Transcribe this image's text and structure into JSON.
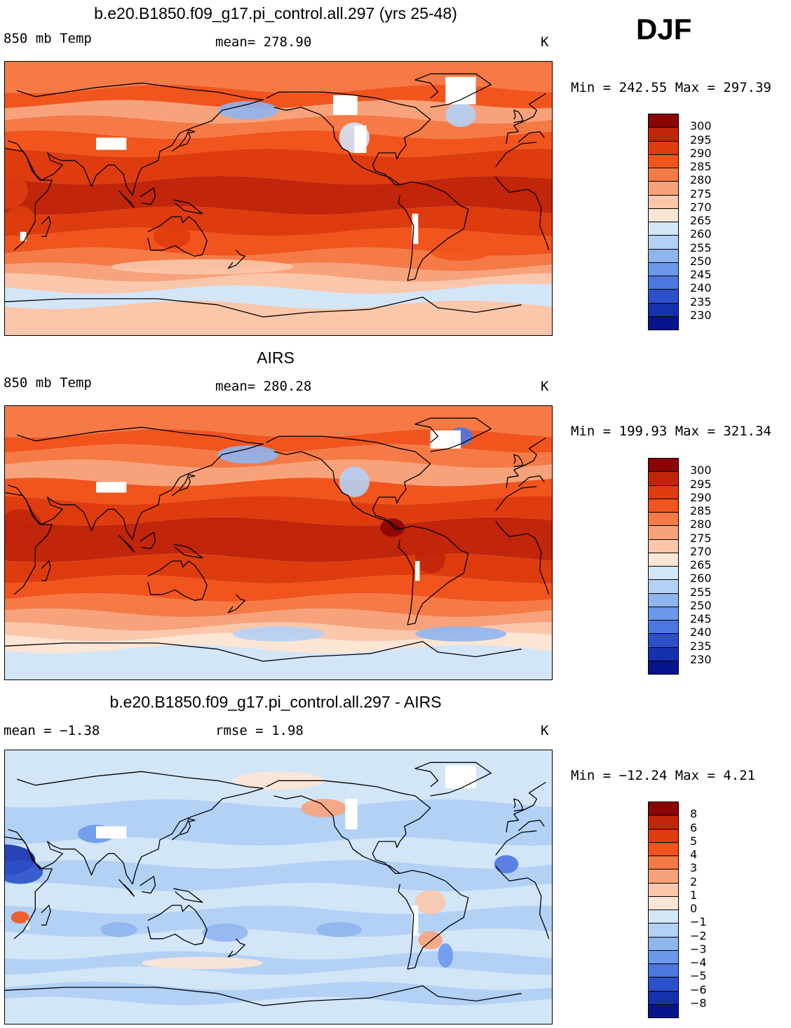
{
  "season": "DJF",
  "panels": [
    {
      "title": "b.e20.B1850.f09_g17.pi_control.all.297 (yrs 25-48)",
      "left_label": "850 mb Temp",
      "center_label": "mean=  278.90",
      "units": "K",
      "minmax": "Min = 242.55 Max = 297.39",
      "colorbar": {
        "levels": [
          "300",
          "295",
          "290",
          "285",
          "280",
          "275",
          "270",
          "265",
          "260",
          "255",
          "250",
          "245",
          "240",
          "235",
          "230"
        ],
        "colors": [
          "#8a0505",
          "#c1250a",
          "#de3c0e",
          "#f1551d",
          "#f57a46",
          "#f8a27b",
          "#fbc7ab",
          "#fde5d4",
          "#d3e6f8",
          "#b3d0f5",
          "#8fb5ef",
          "#6c98ea",
          "#4b77e0",
          "#2c50c9",
          "#1531ad",
          "#07148d"
        ]
      },
      "field": "model"
    },
    {
      "title": "AIRS",
      "left_label": "850 mb Temp",
      "center_label": "mean=  280.28",
      "units": "K",
      "minmax": "Min = 199.93 Max = 321.34",
      "colorbar": {
        "levels": [
          "300",
          "295",
          "290",
          "285",
          "280",
          "275",
          "270",
          "265",
          "260",
          "255",
          "250",
          "245",
          "240",
          "235",
          "230"
        ],
        "colors": [
          "#8a0505",
          "#c1250a",
          "#de3c0e",
          "#f1551d",
          "#f57a46",
          "#f8a27b",
          "#fbc7ab",
          "#fde5d4",
          "#d3e6f8",
          "#b3d0f5",
          "#8fb5ef",
          "#6c98ea",
          "#4b77e0",
          "#2c50c9",
          "#1531ad",
          "#07148d"
        ]
      },
      "field": "obs"
    },
    {
      "title": "b.e20.B1850.f09_g17.pi_control.all.297 - AIRS",
      "left_label": "mean =   −1.38",
      "center_label": "rmse =     1.98",
      "units": "K",
      "minmax": "Min = −12.24 Max =    4.21",
      "colorbar": {
        "levels": [
          "8",
          "6",
          "5",
          "4",
          "3",
          "2",
          "1",
          "0",
          "−1",
          "−2",
          "−3",
          "−4",
          "−5",
          "−6",
          "−8"
        ],
        "colors": [
          "#8a0505",
          "#c1250a",
          "#de3c0e",
          "#f1551d",
          "#f57a46",
          "#f8a27b",
          "#fbc7ab",
          "#fde5d4",
          "#d3e6f8",
          "#b3d0f5",
          "#8fb5ef",
          "#6c98ea",
          "#4b77e0",
          "#2c50c9",
          "#1531ad",
          "#07148d"
        ]
      },
      "field": "diff"
    }
  ]
}
